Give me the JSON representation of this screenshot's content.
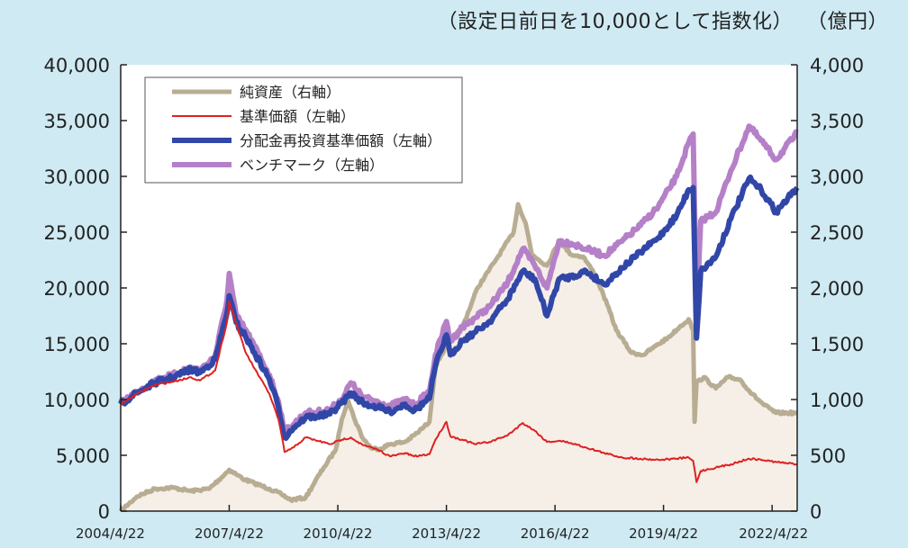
{
  "header": {
    "index_note": "（設定日前日を10,000として指数化）",
    "right_unit": "（億円）"
  },
  "chart_data": {
    "type": "line",
    "x_ticks": [
      "2004/4/22",
      "2007/4/22",
      "2010/4/22",
      "2013/4/22",
      "2016/4/22",
      "2019/4/22",
      "2022/4/22"
    ],
    "x_range": [
      "2004/4/22",
      "2022/12/31"
    ],
    "left_axis": {
      "ylim": [
        0,
        40000
      ],
      "ticks": [
        "0",
        "5,000",
        "10,000",
        "15,000",
        "20,000",
        "25,000",
        "30,000",
        "35,000",
        "40,000"
      ]
    },
    "right_axis": {
      "ylim": [
        0,
        4000
      ],
      "ticks": [
        "0",
        "500",
        "1,000",
        "1,500",
        "2,000",
        "2,500",
        "3,000",
        "3,500",
        "4,000"
      ]
    },
    "legend_position": "top-left",
    "series": [
      {
        "name": "純資産（右軸）",
        "axis": "right",
        "color": "#b8ad92",
        "style": "area",
        "points": [
          [
            "2004/4/22",
            0
          ],
          [
            "2004/10/1",
            130
          ],
          [
            "2005/4/1",
            200
          ],
          [
            "2005/10/1",
            210
          ],
          [
            "2006/4/1",
            180
          ],
          [
            "2006/10/1",
            200
          ],
          [
            "2007/2/1",
            300
          ],
          [
            "2007/4/22",
            370
          ],
          [
            "2007/7/1",
            330
          ],
          [
            "2007/10/1",
            280
          ],
          [
            "2008/1/1",
            250
          ],
          [
            "2008/6/1",
            200
          ],
          [
            "2008/10/1",
            150
          ],
          [
            "2009/1/1",
            100
          ],
          [
            "2009/6/1",
            120
          ],
          [
            "2009/9/1",
            260
          ],
          [
            "2009/12/1",
            390
          ],
          [
            "2010/4/1",
            550
          ],
          [
            "2010/6/1",
            820
          ],
          [
            "2010/8/1",
            1000
          ],
          [
            "2010/10/1",
            840
          ],
          [
            "2011/1/1",
            650
          ],
          [
            "2011/4/1",
            560
          ],
          [
            "2011/7/1",
            560
          ],
          [
            "2011/10/1",
            600
          ],
          [
            "2012/3/1",
            620
          ],
          [
            "2012/7/1",
            700
          ],
          [
            "2012/11/1",
            800
          ],
          [
            "2013/1/1",
            1300
          ],
          [
            "2013/5/1",
            1500
          ],
          [
            "2013/10/1",
            1650
          ],
          [
            "2014/3/1",
            2000
          ],
          [
            "2014/9/1",
            2250
          ],
          [
            "2015/3/1",
            2500
          ],
          [
            "2015/4/15",
            2750
          ],
          [
            "2015/7/1",
            2580
          ],
          [
            "2015/9/1",
            2300
          ],
          [
            "2016/2/1",
            2200
          ],
          [
            "2016/6/1",
            2420
          ],
          [
            "2016/10/1",
            2300
          ],
          [
            "2017/2/1",
            2280
          ],
          [
            "2017/6/1",
            2120
          ],
          [
            "2017/10/1",
            1850
          ],
          [
            "2018/1/1",
            1620
          ],
          [
            "2018/6/1",
            1420
          ],
          [
            "2018/10/1",
            1400
          ],
          [
            "2019/2/1",
            1480
          ],
          [
            "2019/6/1",
            1550
          ],
          [
            "2019/10/1",
            1650
          ],
          [
            "2020/1/1",
            1720
          ],
          [
            "2020/2/15",
            1620
          ],
          [
            "2020/3/1",
            800
          ],
          [
            "2020/3/20",
            1150
          ],
          [
            "2020/6/1",
            1200
          ],
          [
            "2020/10/1",
            1100
          ],
          [
            "2021/2/1",
            1200
          ],
          [
            "2021/6/1",
            1180
          ],
          [
            "2021/10/1",
            1050
          ],
          [
            "2022/2/1",
            950
          ],
          [
            "2022/6/1",
            880
          ],
          [
            "2022/12/31",
            880
          ]
        ]
      },
      {
        "name": "基準価額（左軸）",
        "axis": "left",
        "color": "#e02020",
        "style": "line",
        "points": [
          [
            "2004/4/22",
            9600
          ],
          [
            "2004/10/1",
            10500
          ],
          [
            "2005/4/1",
            11300
          ],
          [
            "2005/10/1",
            11600
          ],
          [
            "2006/4/1",
            12000
          ],
          [
            "2006/7/1",
            11700
          ],
          [
            "2006/12/1",
            12600
          ],
          [
            "2007/4/1",
            17000
          ],
          [
            "2007/4/22",
            18800
          ],
          [
            "2007/7/1",
            16800
          ],
          [
            "2007/10/1",
            14300
          ],
          [
            "2008/1/1",
            12800
          ],
          [
            "2008/6/1",
            10500
          ],
          [
            "2008/9/1",
            8200
          ],
          [
            "2008/11/1",
            5300
          ],
          [
            "2009/2/1",
            5700
          ],
          [
            "2009/6/1",
            6600
          ],
          [
            "2009/10/1",
            6300
          ],
          [
            "2010/2/1",
            6000
          ],
          [
            "2010/6/1",
            6400
          ],
          [
            "2010/9/1",
            6600
          ],
          [
            "2011/1/1",
            5900
          ],
          [
            "2011/6/1",
            5500
          ],
          [
            "2011/10/1",
            4900
          ],
          [
            "2012/3/1",
            5200
          ],
          [
            "2012/6/1",
            4900
          ],
          [
            "2012/11/1",
            5100
          ],
          [
            "2013/1/1",
            6400
          ],
          [
            "2013/4/22",
            8000
          ],
          [
            "2013/6/1",
            6700
          ],
          [
            "2013/10/1",
            6400
          ],
          [
            "2014/2/1",
            6000
          ],
          [
            "2014/7/1",
            6200
          ],
          [
            "2015/1/1",
            6800
          ],
          [
            "2015/6/1",
            7900
          ],
          [
            "2015/10/1",
            7200
          ],
          [
            "2016/2/1",
            6200
          ],
          [
            "2016/6/1",
            6300
          ],
          [
            "2016/10/1",
            6100
          ],
          [
            "2017/3/1",
            5700
          ],
          [
            "2017/9/1",
            5200
          ],
          [
            "2018/3/1",
            4800
          ],
          [
            "2018/9/1",
            4700
          ],
          [
            "2019/3/1",
            4600
          ],
          [
            "2019/9/1",
            4700
          ],
          [
            "2020/1/1",
            4800
          ],
          [
            "2020/2/15",
            4500
          ],
          [
            "2020/3/20",
            2600
          ],
          [
            "2020/5/1",
            3600
          ],
          [
            "2020/10/1",
            3900
          ],
          [
            "2021/3/1",
            4200
          ],
          [
            "2021/9/1",
            4700
          ],
          [
            "2022/1/1",
            4600
          ],
          [
            "2022/6/1",
            4400
          ],
          [
            "2022/12/31",
            4200
          ]
        ]
      },
      {
        "name": "分配金再投資基準価額（左軸）",
        "axis": "left",
        "color": "#3147a8",
        "style": "line",
        "points": [
          [
            "2004/4/22",
            9600
          ],
          [
            "2004/10/1",
            10600
          ],
          [
            "2005/4/1",
            11500
          ],
          [
            "2005/10/1",
            12000
          ],
          [
            "2006/4/1",
            12700
          ],
          [
            "2006/7/1",
            12400
          ],
          [
            "2006/12/1",
            13600
          ],
          [
            "2007/4/1",
            17800
          ],
          [
            "2007/4/22",
            19300
          ],
          [
            "2007/7/1",
            16900
          ],
          [
            "2007/10/1",
            15700
          ],
          [
            "2008/1/1",
            14200
          ],
          [
            "2008/6/1",
            11800
          ],
          [
            "2008/9/1",
            9300
          ],
          [
            "2008/11/1",
            6600
          ],
          [
            "2009/2/1",
            7500
          ],
          [
            "2009/6/1",
            8400
          ],
          [
            "2009/10/1",
            8500
          ],
          [
            "2010/2/1",
            8700
          ],
          [
            "2010/6/1",
            9700
          ],
          [
            "2010/9/1",
            10600
          ],
          [
            "2011/1/1",
            9700
          ],
          [
            "2011/6/1",
            9300
          ],
          [
            "2011/10/1",
            8900
          ],
          [
            "2012/3/1",
            9600
          ],
          [
            "2012/6/1",
            9000
          ],
          [
            "2012/11/1",
            10100
          ],
          [
            "2013/1/1",
            13000
          ],
          [
            "2013/4/22",
            15800
          ],
          [
            "2013/6/1",
            14000
          ],
          [
            "2013/10/1",
            15300
          ],
          [
            "2014/2/1",
            16000
          ],
          [
            "2014/7/1",
            17000
          ],
          [
            "2015/1/1",
            19000
          ],
          [
            "2015/6/1",
            21500
          ],
          [
            "2015/10/1",
            20800
          ],
          [
            "2016/2/1",
            17500
          ],
          [
            "2016/6/1",
            20800
          ],
          [
            "2016/10/1",
            21000
          ],
          [
            "2017/3/1",
            21500
          ],
          [
            "2017/9/1",
            20300
          ],
          [
            "2018/3/1",
            21800
          ],
          [
            "2018/9/1",
            23200
          ],
          [
            "2019/3/1",
            24500
          ],
          [
            "2019/9/1",
            26500
          ],
          [
            "2020/1/1",
            28800
          ],
          [
            "2020/2/15",
            29000
          ],
          [
            "2020/3/20",
            15500
          ],
          [
            "2020/5/1",
            21500
          ],
          [
            "2020/10/1",
            22800
          ],
          [
            "2021/3/1",
            26200
          ],
          [
            "2021/9/1",
            29800
          ],
          [
            "2022/1/1",
            28800
          ],
          [
            "2022/6/1",
            26800
          ],
          [
            "2022/12/31",
            29000
          ]
        ]
      },
      {
        "name": "ベンチマーク（左軸）",
        "axis": "left",
        "color": "#b580c8",
        "style": "line",
        "points": [
          [
            "2004/4/22",
            9700
          ],
          [
            "2004/10/1",
            10700
          ],
          [
            "2005/4/1",
            11700
          ],
          [
            "2005/10/1",
            12200
          ],
          [
            "2006/4/1",
            12900
          ],
          [
            "2006/7/1",
            12600
          ],
          [
            "2006/12/1",
            13900
          ],
          [
            "2007/4/1",
            19000
          ],
          [
            "2007/4/22",
            21300
          ],
          [
            "2007/7/1",
            17500
          ],
          [
            "2007/10/1",
            16300
          ],
          [
            "2008/1/1",
            14800
          ],
          [
            "2008/6/1",
            12200
          ],
          [
            "2008/9/1",
            9800
          ],
          [
            "2008/11/1",
            7200
          ],
          [
            "2009/2/1",
            7800
          ],
          [
            "2009/6/1",
            8800
          ],
          [
            "2009/10/1",
            8900
          ],
          [
            "2010/2/1",
            9100
          ],
          [
            "2010/6/1",
            10000
          ],
          [
            "2010/9/1",
            11500
          ],
          [
            "2011/1/1",
            10200
          ],
          [
            "2011/6/1",
            9800
          ],
          [
            "2011/10/1",
            9400
          ],
          [
            "2012/3/1",
            10000
          ],
          [
            "2012/6/1",
            9500
          ],
          [
            "2012/11/1",
            10700
          ],
          [
            "2013/1/1",
            14000
          ],
          [
            "2013/4/22",
            17000
          ],
          [
            "2013/6/1",
            15200
          ],
          [
            "2013/10/1",
            16500
          ],
          [
            "2014/2/1",
            17300
          ],
          [
            "2014/7/1",
            18300
          ],
          [
            "2015/1/1",
            20500
          ],
          [
            "2015/6/1",
            23500
          ],
          [
            "2015/10/1",
            22000
          ],
          [
            "2016/2/1",
            20000
          ],
          [
            "2016/6/1",
            24200
          ],
          [
            "2016/10/1",
            24000
          ],
          [
            "2017/3/1",
            23500
          ],
          [
            "2017/9/1",
            22900
          ],
          [
            "2018/3/1",
            24200
          ],
          [
            "2018/9/1",
            25600
          ],
          [
            "2019/3/1",
            27300
          ],
          [
            "2019/9/1",
            30000
          ],
          [
            "2020/1/1",
            33000
          ],
          [
            "2020/2/15",
            33800
          ],
          [
            "2020/3/20",
            17000
          ],
          [
            "2020/5/1",
            26000
          ],
          [
            "2020/10/1",
            26800
          ],
          [
            "2021/3/1",
            30500
          ],
          [
            "2021/9/1",
            34500
          ],
          [
            "2022/1/1",
            33200
          ],
          [
            "2022/6/1",
            31500
          ],
          [
            "2022/12/31",
            33900
          ]
        ]
      }
    ]
  }
}
